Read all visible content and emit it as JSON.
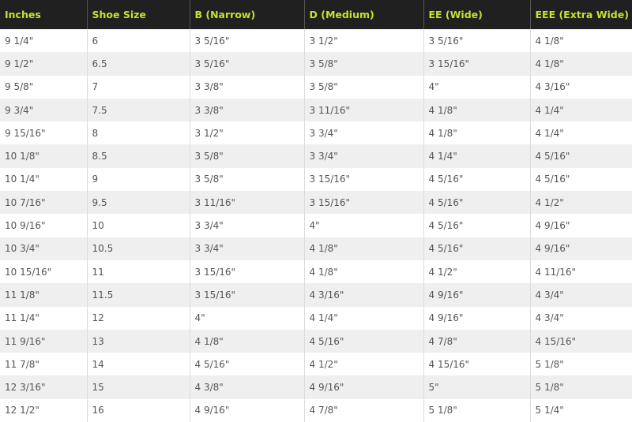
{
  "table": {
    "headers": [
      "Inches",
      "Shoe Size",
      "B (Narrow)",
      "D (Medium)",
      "EE (Wide)",
      "EEE (Extra Wide)"
    ],
    "rows": [
      [
        "9 1/4\"",
        "6",
        "3 5/16\"",
        "3 1/2\"",
        "3 5/16\"",
        "4 1/8\""
      ],
      [
        "9 1/2\"",
        "6.5",
        "3 5/16\"",
        "3 5/8\"",
        "3 15/16\"",
        "4 1/8\""
      ],
      [
        "9 5/8\"",
        "7",
        "3 3/8\"",
        "3 5/8\"",
        "4\"",
        "4 3/16\""
      ],
      [
        "9 3/4\"",
        "7.5",
        "3 3/8\"",
        "3 11/16\"",
        "4 1/8\"",
        "4 1/4\""
      ],
      [
        "9 15/16\"",
        "8",
        "3 1/2\"",
        "3 3/4\"",
        "4 1/8\"",
        "4 1/4\""
      ],
      [
        "10 1/8\"",
        "8.5",
        "3 5/8\"",
        "3 3/4\"",
        "4 1/4\"",
        "4 5/16\""
      ],
      [
        "10 1/4\"",
        "9",
        "3 5/8\"",
        "3 15/16\"",
        "4 5/16\"",
        "4 5/16\""
      ],
      [
        "10 7/16\"",
        "9.5",
        "3 11/16\"",
        "3 15/16\"",
        "4 5/16\"",
        "4 1/2\""
      ],
      [
        "10 9/16\"",
        "10",
        "3 3/4\"",
        "4\"",
        "4 5/16\"",
        "4 9/16\""
      ],
      [
        "10 3/4\"",
        "10.5",
        "3 3/4\"",
        "4 1/8\"",
        "4 5/16\"",
        "4 9/16\""
      ],
      [
        "10 15/16\"",
        "11",
        "3 15/16\"",
        "4 1/8\"",
        "4 1/2\"",
        "4 11/16\""
      ],
      [
        "11 1/8\"",
        "11.5",
        "3 15/16\"",
        "4 3/16\"",
        "4 9/16\"",
        "4 3/4\""
      ],
      [
        "11 1/4\"",
        "12",
        "4\"",
        "4 1/4\"",
        "4 9/16\"",
        "4 3/4\""
      ],
      [
        "11 9/16\"",
        "13",
        "4 1/8\"",
        "4 5/16\"",
        "4 7/8\"",
        "4 15/16\""
      ],
      [
        "11 7/8\"",
        "14",
        "4 5/16\"",
        "4 1/2\"",
        "4 15/16\"",
        "5 1/8\""
      ],
      [
        "12 3/16\"",
        "15",
        "4 3/8\"",
        "4 9/16\"",
        "5\"",
        "5 1/8\""
      ],
      [
        "12 1/2\"",
        "16",
        "4 9/16\"",
        "4 7/8\"",
        "5 1/8\"",
        "5 1/4\""
      ]
    ]
  },
  "colors": {
    "header_background": "#202020",
    "header_text": "#c6e12f",
    "row_alt_background": "#efefef",
    "cell_text": "#555555"
  }
}
